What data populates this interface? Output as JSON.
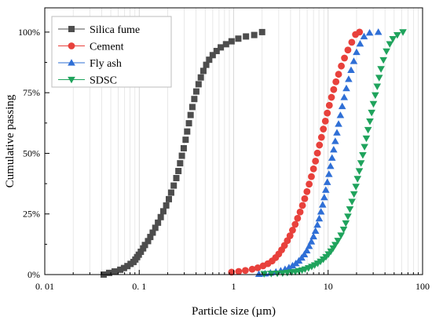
{
  "chart_data": {
    "type": "scatter",
    "xlabel": "Particle size (µm)",
    "ylabel": "Cumulative passing",
    "xscale": "log",
    "xlim": [
      0.01,
      100
    ],
    "ylim": [
      0,
      1.1
    ],
    "x_ticks": [
      "0. 01",
      "0. 1",
      "1",
      "10",
      "100"
    ],
    "y_ticks": [
      "0%",
      "25%",
      "50%",
      "75%",
      "100%"
    ],
    "grid": "vertical minor lines",
    "legend_position": "top-left",
    "series": [
      {
        "name": "Silica fume",
        "marker": "square",
        "color": "#4d4d4d",
        "points": [
          [
            0.042,
            0.0
          ],
          [
            0.048,
            0.007
          ],
          [
            0.055,
            0.013
          ],
          [
            0.063,
            0.02
          ],
          [
            0.069,
            0.027
          ],
          [
            0.075,
            0.035
          ],
          [
            0.081,
            0.044
          ],
          [
            0.087,
            0.052
          ],
          [
            0.091,
            0.062
          ],
          [
            0.095,
            0.072
          ],
          [
            0.099,
            0.082
          ],
          [
            0.104,
            0.094
          ],
          [
            0.11,
            0.108
          ],
          [
            0.115,
            0.122
          ],
          [
            0.124,
            0.138
          ],
          [
            0.131,
            0.155
          ],
          [
            0.139,
            0.173
          ],
          [
            0.148,
            0.193
          ],
          [
            0.158,
            0.214
          ],
          [
            0.169,
            0.237
          ],
          [
            0.18,
            0.261
          ],
          [
            0.193,
            0.285
          ],
          [
            0.206,
            0.311
          ],
          [
            0.218,
            0.338
          ],
          [
            0.232,
            0.367
          ],
          [
            0.247,
            0.398
          ],
          [
            0.26,
            0.427
          ],
          [
            0.271,
            0.459
          ],
          [
            0.283,
            0.49
          ],
          [
            0.296,
            0.521
          ],
          [
            0.31,
            0.556
          ],
          [
            0.322,
            0.59
          ],
          [
            0.336,
            0.624
          ],
          [
            0.35,
            0.658
          ],
          [
            0.365,
            0.691
          ],
          [
            0.383,
            0.724
          ],
          [
            0.402,
            0.755
          ],
          [
            0.425,
            0.785
          ],
          [
            0.449,
            0.813
          ],
          [
            0.478,
            0.84
          ],
          [
            0.512,
            0.865
          ],
          [
            0.55,
            0.886
          ],
          [
            0.6,
            0.905
          ],
          [
            0.66,
            0.922
          ],
          [
            0.73,
            0.937
          ],
          [
            0.83,
            0.95
          ],
          [
            0.95,
            0.962
          ],
          [
            1.12,
            0.973
          ],
          [
            1.35,
            0.982
          ],
          [
            1.65,
            0.988
          ],
          [
            2.0,
            1.0
          ]
        ]
      },
      {
        "name": "Cement",
        "marker": "circle",
        "color": "#e8413c",
        "points": [
          [
            0.95,
            0.01
          ],
          [
            1.13,
            0.013
          ],
          [
            1.33,
            0.017
          ],
          [
            1.57,
            0.022
          ],
          [
            1.8,
            0.028
          ],
          [
            2.05,
            0.036
          ],
          [
            2.3,
            0.045
          ],
          [
            2.55,
            0.056
          ],
          [
            2.78,
            0.07
          ],
          [
            3.0,
            0.085
          ],
          [
            3.22,
            0.102
          ],
          [
            3.45,
            0.12
          ],
          [
            3.7,
            0.14
          ],
          [
            3.95,
            0.16
          ],
          [
            4.2,
            0.183
          ],
          [
            4.48,
            0.207
          ],
          [
            4.75,
            0.232
          ],
          [
            5.05,
            0.258
          ],
          [
            5.35,
            0.285
          ],
          [
            5.65,
            0.313
          ],
          [
            5.97,
            0.342
          ],
          [
            6.3,
            0.373
          ],
          [
            6.65,
            0.404
          ],
          [
            7.0,
            0.436
          ],
          [
            7.35,
            0.468
          ],
          [
            7.7,
            0.501
          ],
          [
            8.1,
            0.534
          ],
          [
            8.5,
            0.566
          ],
          [
            8.9,
            0.6
          ],
          [
            9.35,
            0.633
          ],
          [
            9.8,
            0.666
          ],
          [
            10.3,
            0.698
          ],
          [
            10.85,
            0.731
          ],
          [
            11.45,
            0.763
          ],
          [
            12.1,
            0.795
          ],
          [
            12.9,
            0.826
          ],
          [
            13.8,
            0.86
          ],
          [
            14.9,
            0.893
          ],
          [
            16.2,
            0.926
          ],
          [
            17.8,
            0.958
          ],
          [
            19.5,
            0.99
          ],
          [
            21.5,
            1.0
          ]
        ]
      },
      {
        "name": "Fly ash",
        "marker": "triangle-up",
        "color": "#2f6fd6",
        "points": [
          [
            1.85,
            0.002
          ],
          [
            2.15,
            0.004
          ],
          [
            2.45,
            0.007
          ],
          [
            2.8,
            0.011
          ],
          [
            3.15,
            0.016
          ],
          [
            3.5,
            0.022
          ],
          [
            3.85,
            0.029
          ],
          [
            4.2,
            0.037
          ],
          [
            4.55,
            0.046
          ],
          [
            4.9,
            0.057
          ],
          [
            5.25,
            0.069
          ],
          [
            5.6,
            0.083
          ],
          [
            5.95,
            0.099
          ],
          [
            6.3,
            0.117
          ],
          [
            6.65,
            0.136
          ],
          [
            7.0,
            0.157
          ],
          [
            7.35,
            0.18
          ],
          [
            7.7,
            0.205
          ],
          [
            8.05,
            0.231
          ],
          [
            8.4,
            0.259
          ],
          [
            8.75,
            0.288
          ],
          [
            9.1,
            0.318
          ],
          [
            9.45,
            0.349
          ],
          [
            9.8,
            0.381
          ],
          [
            10.2,
            0.414
          ],
          [
            10.6,
            0.447
          ],
          [
            11.0,
            0.481
          ],
          [
            11.45,
            0.515
          ],
          [
            11.9,
            0.55
          ],
          [
            12.4,
            0.585
          ],
          [
            12.9,
            0.621
          ],
          [
            13.5,
            0.657
          ],
          [
            14.1,
            0.694
          ],
          [
            14.8,
            0.731
          ],
          [
            15.6,
            0.768
          ],
          [
            16.5,
            0.806
          ],
          [
            17.5,
            0.843
          ],
          [
            18.7,
            0.88
          ],
          [
            20.0,
            0.917
          ],
          [
            21.8,
            0.952
          ],
          [
            24.0,
            0.982
          ],
          [
            27.5,
            0.997
          ],
          [
            34.0,
            1.0
          ]
        ]
      },
      {
        "name": "SDSC",
        "marker": "triangle-down",
        "color": "#1fa35c",
        "points": [
          [
            2.1,
            0.003
          ],
          [
            2.5,
            0.004
          ],
          [
            2.9,
            0.005
          ],
          [
            3.3,
            0.006
          ],
          [
            3.7,
            0.008
          ],
          [
            4.1,
            0.01
          ],
          [
            4.5,
            0.012
          ],
          [
            4.9,
            0.015
          ],
          [
            5.3,
            0.018
          ],
          [
            5.7,
            0.022
          ],
          [
            6.2,
            0.027
          ],
          [
            6.7,
            0.033
          ],
          [
            7.2,
            0.039
          ],
          [
            7.75,
            0.046
          ],
          [
            8.3,
            0.054
          ],
          [
            8.9,
            0.063
          ],
          [
            9.5,
            0.073
          ],
          [
            10.1,
            0.084
          ],
          [
            10.7,
            0.096
          ],
          [
            11.3,
            0.109
          ],
          [
            11.9,
            0.123
          ],
          [
            12.7,
            0.14
          ],
          [
            13.7,
            0.162
          ],
          [
            14.6,
            0.186
          ],
          [
            15.4,
            0.212
          ],
          [
            16.2,
            0.24
          ],
          [
            17.0,
            0.27
          ],
          [
            17.9,
            0.301
          ],
          [
            18.8,
            0.332
          ],
          [
            19.7,
            0.363
          ],
          [
            20.5,
            0.395
          ],
          [
            21.4,
            0.427
          ],
          [
            22.3,
            0.46
          ],
          [
            23.3,
            0.493
          ],
          [
            24.3,
            0.527
          ],
          [
            25.4,
            0.562
          ],
          [
            26.5,
            0.597
          ],
          [
            27.7,
            0.632
          ],
          [
            28.9,
            0.668
          ],
          [
            30.2,
            0.704
          ],
          [
            31.6,
            0.74
          ],
          [
            33.1,
            0.776
          ],
          [
            34.7,
            0.812
          ],
          [
            36.3,
            0.848
          ],
          [
            38.5,
            0.885
          ],
          [
            41.5,
            0.921
          ],
          [
            45.0,
            0.951
          ],
          [
            48.5,
            0.972
          ],
          [
            54.0,
            0.988
          ],
          [
            62.0,
            1.0
          ]
        ]
      }
    ]
  }
}
